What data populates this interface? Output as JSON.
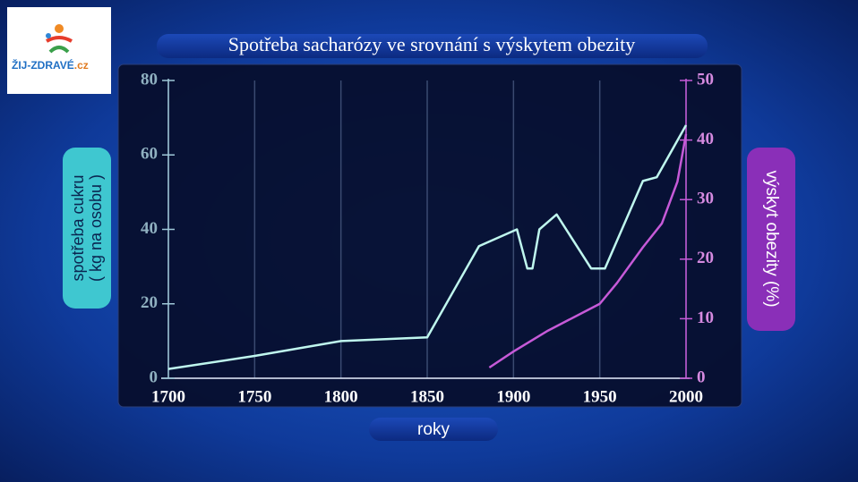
{
  "logo": {
    "text": "ŽIJ-ZDRAVÉ",
    "suffix": ".cz"
  },
  "chart_data": {
    "type": "line",
    "title": "Spotřeba sacharózy ve srovnání s výskytem obezity",
    "xlabel": "roky",
    "ylabel": [
      "spotřeba cukru",
      "( kg na osobu )"
    ],
    "y2label": "výskyt obezity (%)",
    "xlim": [
      1700,
      2000
    ],
    "xticks": [
      1700,
      1750,
      1800,
      1850,
      1900,
      1950,
      2000
    ],
    "ylim": [
      0,
      80
    ],
    "yticks": [
      0,
      20,
      40,
      60,
      80
    ],
    "y2lim": [
      0,
      50
    ],
    "y2ticks": [
      0,
      10,
      20,
      30,
      40,
      50
    ],
    "grid": true,
    "series": [
      {
        "name": "spotřeba cukru",
        "color": "#bff7ee",
        "x": [
          1700,
          1750,
          1800,
          1850,
          1880,
          1902,
          1908,
          1911,
          1915,
          1925,
          1945,
          1953,
          1975,
          1983,
          2000
        ],
        "values": [
          2.5,
          6,
          10,
          11,
          35.5,
          40,
          29.5,
          29.5,
          40,
          44,
          29.5,
          29.5,
          53,
          54,
          68
        ]
      },
      {
        "name": "výskyt obezity",
        "color": "#c65ad8",
        "axis": "y2",
        "x": [
          1886,
          1900,
          1920,
          1940,
          1950,
          1960,
          1975,
          1986,
          1995,
          2000
        ],
        "values": [
          1.8,
          4.5,
          8,
          11,
          12.5,
          16,
          22,
          26,
          33,
          41
        ]
      }
    ]
  }
}
